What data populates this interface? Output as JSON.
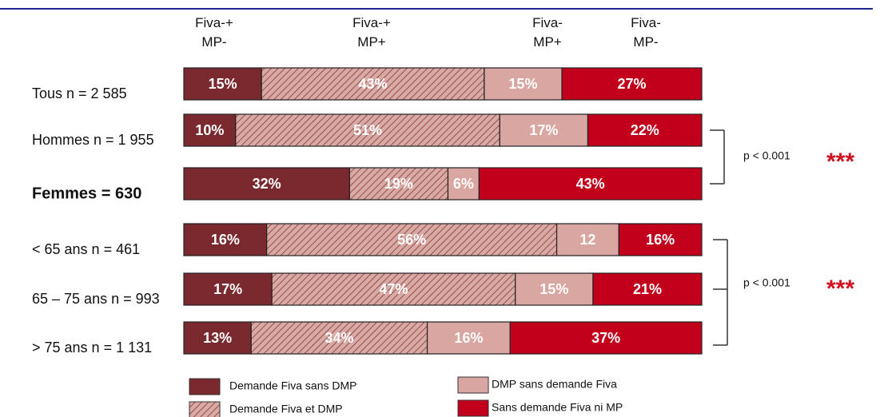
{
  "chart_data": {
    "type": "stacked-bar",
    "orientation": "horizontal",
    "column_headers": [
      [
        "Fiva-+",
        "MP-"
      ],
      [
        "Fiva-+",
        "MP+"
      ],
      [
        "Fiva-",
        "MP+"
      ],
      [
        "Fiva-",
        "MP-"
      ]
    ],
    "categories": [
      "Tous n = 2 585",
      "Hommes n = 1 955",
      "Femmes = 630",
      "< 65 ans n = 461",
      "65 – 75 ans n = 993",
      "> 75 ans n = 1 131"
    ],
    "xlim": [
      0,
      100
    ],
    "series": [
      {
        "name": "Demande  Fiva sans DMP",
        "color": "#7a2a2e",
        "values": [
          15,
          10,
          32,
          16,
          17,
          13
        ],
        "value_labels": [
          "15%",
          "10%",
          "32%",
          "16%",
          "17%",
          "13%"
        ]
      },
      {
        "name": "Demande Fiva et DMP",
        "color": "#c98a84",
        "hatch": true,
        "values": [
          43,
          51,
          19,
          56,
          47,
          34
        ],
        "value_labels": [
          "43%",
          "51%",
          "19%",
          "56%",
          "47%",
          "34%"
        ]
      },
      {
        "name": "DMP sans demande Fiva",
        "color": "#d9a6a1",
        "values": [
          15,
          17,
          6,
          12,
          15,
          16
        ],
        "value_labels": [
          "15%",
          "17%",
          "6%",
          "12",
          "15%",
          "16%"
        ]
      },
      {
        "name": "Sans demande Fiva ni MP",
        "color": "#c3001c",
        "values": [
          27,
          22,
          43,
          16,
          21,
          37
        ],
        "value_labels": [
          "27%",
          "22%",
          "43%",
          "16%",
          "21%",
          "37%"
        ]
      }
    ],
    "annotations": [
      {
        "text": "p < 0.001",
        "stars": "***"
      },
      {
        "text": "p < 0.001",
        "stars": "***"
      }
    ]
  }
}
